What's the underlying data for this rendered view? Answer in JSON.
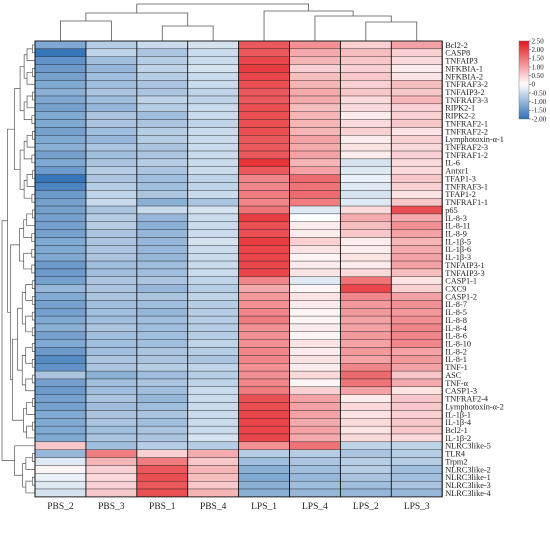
{
  "chart_data": {
    "type": "heatmap",
    "columns": [
      "PBS_2",
      "PBS_3",
      "PBS_1",
      "PBS_4",
      "LPS_1",
      "LPS_4",
      "LPS_2",
      "LPS_3"
    ],
    "rows": [
      "Bcl2-2",
      "CASP8",
      "TNFAIP3",
      "NFKBIA-1",
      "NFKBIA-2",
      "TNFRAF3-2",
      "TNFAIP3-2",
      "TNFRAF3-3",
      "RIPK2-1",
      "RIPK2-2",
      "TNFRAF2-1",
      "TNFRAF2-2",
      "Lymphotoxin-α-1",
      "TNFRAF2-3",
      "TNFRAF1-2",
      "IL-6",
      "Antxr1",
      "TFAP1-3",
      "TNFRAF3-1",
      "TFAP1-2",
      "TNFRAF1-1",
      "p65",
      "IL-8-3",
      "IL-8-11",
      "IL-8-9",
      "IL-1β-5",
      "IL-1β-6",
      "IL-1β-3",
      "TNFAIP3-1",
      "TNFAIP3-3",
      "CASP1-1",
      "CXC9",
      "CASP1-2",
      "IL-8-7",
      "IL-8-5",
      "IL-8-8",
      "IL-8-4",
      "IL-8-6",
      "IL-8-10",
      "IL-8-2",
      "IL-8-1",
      "TNF-1",
      "ASC",
      "TNF-α",
      "CASP1-3",
      "TNFRAF2-4",
      "Lymphotoxin-α-2",
      "IL-1β-1",
      "IL-1β-4",
      "Bcl2-1",
      "IL-1β-2",
      "NLRC3like-5",
      "TLR4",
      "Trpm2",
      "NLRC3like-2",
      "NLRC3like-1",
      "NLRC3like-3",
      "NLRC3like-4"
    ],
    "values": [
      [
        -1.2,
        -0.7,
        -0.5,
        -0.4,
        1.8,
        1.2,
        0.5,
        1.0
      ],
      [
        -1.9,
        -0.6,
        -0.8,
        -0.5,
        1.8,
        0.9,
        0.7,
        0.5
      ],
      [
        -1.5,
        -0.9,
        -0.7,
        -0.5,
        2.0,
        0.8,
        0.6,
        0.4
      ],
      [
        -1.4,
        -1.0,
        -0.6,
        -0.4,
        2.1,
        0.5,
        0.5,
        0.2
      ],
      [
        -1.3,
        -0.9,
        -0.7,
        -0.5,
        2.0,
        0.7,
        0.6,
        0.3
      ],
      [
        -1.2,
        -0.9,
        -0.8,
        -0.5,
        1.9,
        0.8,
        0.5,
        0.7
      ],
      [
        -1.1,
        -0.8,
        -0.8,
        -0.6,
        1.8,
        0.9,
        0.6,
        0.6
      ],
      [
        -1.2,
        -0.9,
        -0.6,
        -0.6,
        1.8,
        0.9,
        0.4,
        0.8
      ],
      [
        -1.3,
        -1.0,
        -0.7,
        -0.5,
        1.9,
        0.7,
        0.4,
        0.5
      ],
      [
        -1.2,
        -0.8,
        -0.9,
        -0.5,
        1.9,
        0.8,
        0.2,
        0.5
      ],
      [
        -1.2,
        -0.8,
        -0.8,
        -0.6,
        1.9,
        0.8,
        0.4,
        0.6
      ],
      [
        -1.3,
        -0.9,
        -0.7,
        -0.5,
        1.9,
        0.8,
        0.5,
        0.3
      ],
      [
        -1.2,
        -1.0,
        -0.7,
        -0.5,
        1.8,
        1.0,
        0.2,
        0.5
      ],
      [
        -1.1,
        -0.8,
        -0.8,
        -0.5,
        1.8,
        0.9,
        0.3,
        0.4
      ],
      [
        -1.3,
        -0.9,
        -0.8,
        -0.5,
        1.8,
        1.0,
        0.2,
        0.5
      ],
      [
        -1.2,
        -0.8,
        -0.7,
        -0.5,
        2.2,
        0.8,
        -0.4,
        0.4
      ],
      [
        -1.4,
        -0.7,
        -0.8,
        -0.5,
        1.8,
        1.0,
        -0.3,
        0.4
      ],
      [
        -1.9,
        -0.8,
        -0.9,
        -0.6,
        1.3,
        1.6,
        -0.2,
        0.6
      ],
      [
        -1.7,
        -0.7,
        -0.9,
        -0.6,
        1.3,
        1.5,
        -0.3,
        0.5
      ],
      [
        -1.4,
        -0.6,
        -0.8,
        -0.5,
        1.4,
        1.6,
        -0.4,
        0.3
      ],
      [
        -1.3,
        -0.5,
        -1.1,
        -0.8,
        1.3,
        1.4,
        -0.3,
        0.6
      ],
      [
        -1.3,
        -0.8,
        -0.5,
        -0.4,
        1.5,
        -0.3,
        0.4,
        1.9
      ],
      [
        -1.3,
        -0.7,
        -1.0,
        -0.5,
        2.1,
        0.0,
        0.9,
        0.9
      ],
      [
        -1.3,
        -0.7,
        -1.1,
        -0.5,
        1.9,
        0.2,
        0.7,
        1.2
      ],
      [
        -1.3,
        -0.8,
        -1.0,
        -0.5,
        1.9,
        0.2,
        0.6,
        1.0
      ],
      [
        -1.2,
        -0.8,
        -1.0,
        -0.4,
        2.1,
        0.5,
        0.2,
        0.8
      ],
      [
        -1.2,
        -0.8,
        -1.0,
        -0.5,
        2.0,
        0.3,
        0.2,
        0.9
      ],
      [
        -1.2,
        -0.8,
        -1.0,
        -0.5,
        2.0,
        0.1,
        0.3,
        1.0
      ],
      [
        -1.4,
        -0.9,
        -0.9,
        -0.5,
        2.0,
        0.2,
        0.2,
        1.0
      ],
      [
        -1.4,
        -0.9,
        -0.9,
        -0.5,
        2.0,
        0.3,
        0.4,
        0.7
      ],
      [
        -1.3,
        -0.8,
        -0.8,
        -0.6,
        1.3,
        -0.3,
        1.5,
        0.3
      ],
      [
        -1.0,
        -0.8,
        -1.0,
        -0.7,
        0.9,
        0.1,
        2.0,
        0.5
      ],
      [
        -1.2,
        -0.8,
        -0.8,
        -0.6,
        1.1,
        0.3,
        1.3,
        1.0
      ],
      [
        -1.3,
        -0.9,
        -0.9,
        -0.7,
        1.2,
        0.2,
        1.1,
        1.2
      ],
      [
        -1.3,
        -0.9,
        -1.0,
        -0.7,
        1.3,
        0.1,
        1.1,
        1.1
      ],
      [
        -1.2,
        -0.9,
        -0.9,
        -0.7,
        1.4,
        0.1,
        1.0,
        1.2
      ],
      [
        -1.1,
        -0.8,
        -0.9,
        -0.7,
        1.2,
        0.2,
        1.0,
        1.3
      ],
      [
        -1.3,
        -0.9,
        -0.9,
        -0.7,
        1.2,
        0.1,
        1.1,
        1.3
      ],
      [
        -1.2,
        -0.9,
        -0.9,
        -0.6,
        1.2,
        0.3,
        1.0,
        1.3
      ],
      [
        -1.4,
        -0.9,
        -0.8,
        -0.7,
        1.3,
        0.2,
        1.1,
        1.0
      ],
      [
        -1.6,
        -0.8,
        -0.8,
        -0.8,
        1.3,
        0.3,
        1.0,
        1.1
      ],
      [
        -1.5,
        -0.8,
        -0.7,
        -0.6,
        1.2,
        0.2,
        1.3,
        1.0
      ],
      [
        -0.8,
        -1.1,
        -0.9,
        -0.7,
        1.2,
        0.4,
        1.6,
        0.6
      ],
      [
        -1.3,
        -0.9,
        -0.8,
        -0.6,
        1.3,
        0.1,
        1.5,
        0.9
      ],
      [
        -1.4,
        -0.9,
        -0.9,
        -0.5,
        1.4,
        0.5,
        1.0,
        0.3
      ],
      [
        -1.3,
        -0.8,
        -1.0,
        -0.5,
        1.9,
        1.0,
        0.2,
        0.6
      ],
      [
        -1.3,
        -0.9,
        -0.9,
        -0.5,
        1.9,
        1.0,
        0.4,
        0.6
      ],
      [
        -1.2,
        -0.8,
        -0.8,
        -0.5,
        2.0,
        1.0,
        0.3,
        0.5
      ],
      [
        -1.2,
        -0.8,
        -0.9,
        -0.5,
        2.0,
        0.9,
        0.4,
        0.6
      ],
      [
        -1.2,
        -0.9,
        -0.8,
        -0.5,
        2.0,
        1.0,
        0.3,
        0.6
      ],
      [
        -1.2,
        -0.8,
        -0.8,
        -0.4,
        2.0,
        0.9,
        0.4,
        0.4
      ],
      [
        0.6,
        -0.9,
        -0.7,
        -0.7,
        1.2,
        1.5,
        -0.6,
        -0.6
      ],
      [
        -1.0,
        1.4,
        0.5,
        0.9,
        -0.7,
        -0.7,
        -0.8,
        -0.7
      ],
      [
        -0.3,
        0.8,
        1.4,
        0.6,
        -0.9,
        -0.8,
        -0.7,
        -0.7
      ],
      [
        0.1,
        0.5,
        1.8,
        0.8,
        -1.1,
        -0.9,
        -0.7,
        -0.9
      ],
      [
        -0.2,
        0.4,
        1.9,
        0.7,
        -1.2,
        -1.0,
        -0.8,
        -0.9
      ],
      [
        -0.3,
        0.5,
        1.8,
        0.6,
        -1.1,
        -0.9,
        -0.9,
        -0.8
      ],
      [
        -0.4,
        0.6,
        1.9,
        0.8,
        -1.1,
        -1.0,
        -1.0,
        -1.0
      ]
    ],
    "color_scale": {
      "min": -2.0,
      "max": 2.5,
      "low_color": "#2c6fb5",
      "mid_color": "#ffffff",
      "high_color": "#e3171d",
      "ticks": [
        "2.50",
        "2.00",
        "1.50",
        "1.00",
        "0.50",
        "0",
        "-0.50",
        "-1.00",
        "-1.50",
        "-2.00"
      ],
      "legend_placement": "top-right"
    },
    "col_dendrogram": true,
    "row_dendrogram": true,
    "title": "",
    "xlabel": "",
    "ylabel": ""
  }
}
